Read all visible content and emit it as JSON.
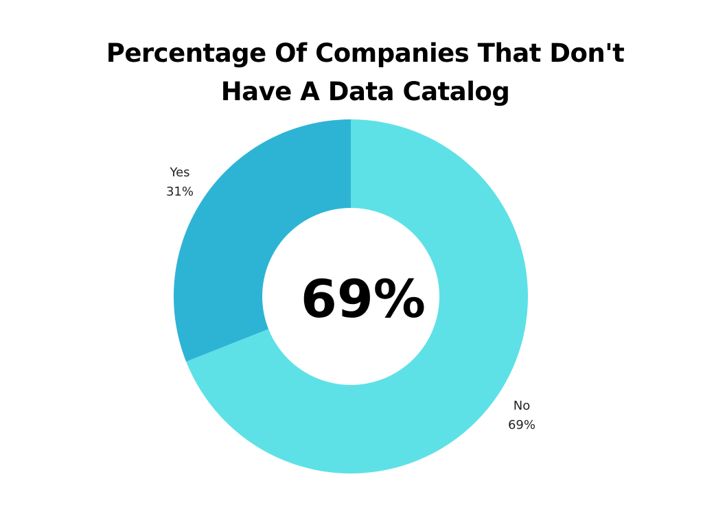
{
  "chart_data": {
    "type": "pie",
    "variant": "donut",
    "title": "Percentage Of Companies That Don't Have A Data Catalog",
    "center_text": "69%",
    "slices": [
      {
        "label": "Yes",
        "value": 31,
        "value_label": "31%",
        "color": "#2db4d5"
      },
      {
        "label": "No",
        "value": 69,
        "value_label": "69%",
        "color": "#5ee1e6"
      }
    ]
  }
}
